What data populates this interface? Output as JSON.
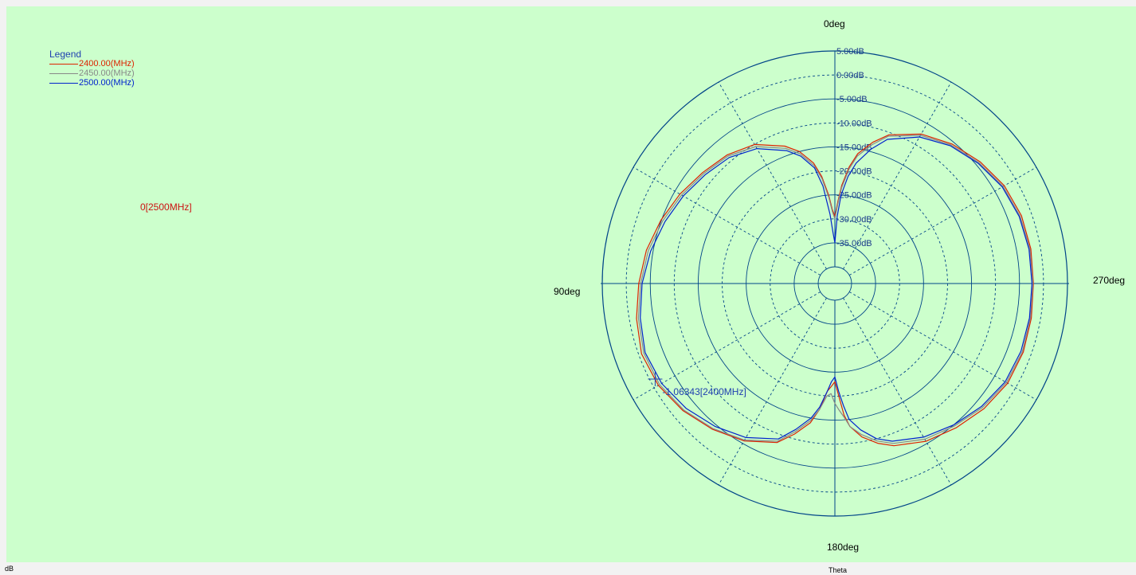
{
  "footer": {
    "left_label": "dB",
    "bottom_axis_label": "Theta"
  },
  "legend": {
    "title": "Legend",
    "entries": [
      {
        "label": "2400.00(MHz)",
        "color": "#dd2200"
      },
      {
        "label": "2450.00(MHz)",
        "color": "#888888"
      },
      {
        "label": "2500.00(MHz)",
        "color": "#0022cc"
      }
    ]
  },
  "markers": {
    "left_marker_text": "0[2500MHz]",
    "cursor_text": "-1.06343[2400MHz]",
    "cursor_angle_deg": 118,
    "cursor_value_db": -1.06343
  },
  "colors": {
    "background": "#ccffcc",
    "grid": "#004488",
    "axis_text": "#1a3a8a"
  },
  "chart_data": {
    "type": "polar",
    "angle_labels": [
      "0deg",
      "90deg",
      "180deg",
      "270deg"
    ],
    "radial_ticks": [
      "5.00dB",
      "0.00dB",
      "-5.00dB",
      "-10.00dB",
      "-15.00dB",
      "-20.00dB",
      "-25.00dB",
      "-30.00dB",
      "-35.00dB"
    ],
    "rlim": [
      -40,
      5
    ],
    "angle_direction": "counterclockwise from top",
    "grid": true,
    "series": [
      {
        "name": "2400.00(MHz)",
        "color": "#dd2200",
        "theta": [
          0,
          2,
          4,
          7,
          10,
          15,
          20,
          30,
          40,
          50,
          60,
          70,
          80,
          90,
          100,
          110,
          120,
          130,
          140,
          150,
          160,
          165,
          170,
          173,
          176,
          178,
          180,
          182,
          184,
          186,
          190,
          195,
          200,
          210,
          220,
          230,
          240,
          250,
          260,
          270,
          280,
          290,
          300,
          310,
          320,
          330,
          340,
          345,
          350,
          353,
          356,
          358,
          360
        ],
        "r": [
          -29.5,
          -28,
          -25,
          -21,
          -18,
          -15,
          -13,
          -10,
          -8.5,
          -7.5,
          -6.2,
          -4.9,
          -3.6,
          -2.6,
          -1.5,
          -0.6,
          -1.0,
          -2.2,
          -3.8,
          -5.6,
          -8.2,
          -11,
          -14,
          -17,
          -21,
          -22,
          -23,
          -20,
          -16,
          -13.5,
          -11,
          -9,
          -7.5,
          -5.5,
          -4.2,
          -2.9,
          -1.9,
          -1.7,
          -1.9,
          -2.1,
          -2.0,
          -2.1,
          -2.7,
          -4.0,
          -5.5,
          -7.5,
          -10.5,
          -13,
          -16,
          -19,
          -23,
          -26.5,
          -29.5
        ]
      },
      {
        "name": "2450.00(MHz)",
        "color": "#888888",
        "theta": [
          0,
          2,
          4,
          7,
          10,
          15,
          20,
          30,
          40,
          50,
          60,
          70,
          80,
          90,
          100,
          110,
          120,
          130,
          140,
          150,
          160,
          165,
          170,
          173,
          176,
          178,
          180,
          182,
          184,
          186,
          190,
          195,
          200,
          210,
          220,
          230,
          240,
          250,
          260,
          270,
          280,
          290,
          300,
          310,
          320,
          330,
          340,
          345,
          350,
          353,
          356,
          358,
          360
        ],
        "r": [
          -30,
          -28.5,
          -25.5,
          -21.5,
          -18.5,
          -15.5,
          -13.5,
          -10.5,
          -8.8,
          -7.8,
          -6.6,
          -5.3,
          -4.0,
          -3.0,
          -1.9,
          -1.1,
          -1.3,
          -2.4,
          -4.0,
          -5.8,
          -8.5,
          -11.5,
          -14.5,
          -17,
          -20,
          -20.5,
          -18.5,
          -17,
          -15.5,
          -13.5,
          -11.5,
          -9.5,
          -8,
          -6,
          -4.7,
          -3.3,
          -2.2,
          -1.9,
          -2.1,
          -2.2,
          -2.2,
          -2.4,
          -3.0,
          -4.3,
          -5.8,
          -7.8,
          -10.8,
          -13.5,
          -16.5,
          -19.5,
          -23.5,
          -27,
          -30
        ]
      },
      {
        "name": "2500.00(MHz)",
        "color": "#0022cc",
        "theta": [
          0,
          2,
          4,
          7,
          10,
          15,
          20,
          30,
          40,
          50,
          60,
          70,
          80,
          90,
          100,
          110,
          120,
          130,
          140,
          150,
          160,
          165,
          170,
          173,
          176,
          178,
          180,
          182,
          184,
          186,
          190,
          195,
          200,
          210,
          220,
          230,
          240,
          250,
          260,
          270,
          280,
          290,
          300,
          310,
          320,
          330,
          340,
          345,
          350,
          353,
          356,
          358,
          360
        ],
        "r": [
          -35,
          -33,
          -29,
          -23,
          -19,
          -16,
          -14,
          -11,
          -9.2,
          -8.2,
          -7.0,
          -5.8,
          -4.5,
          -3.3,
          -2.3,
          -1.4,
          -1.8,
          -3.0,
          -4.6,
          -6.4,
          -9.0,
          -12,
          -15,
          -17.5,
          -21,
          -23,
          -24,
          -21,
          -18,
          -15,
          -12.5,
          -10,
          -8.5,
          -6.5,
          -5.0,
          -3.6,
          -2.5,
          -2.2,
          -2.3,
          -2.4,
          -2.4,
          -2.6,
          -3.2,
          -4.5,
          -6.0,
          -8.2,
          -11.5,
          -14.5,
          -18,
          -21,
          -25,
          -29.5,
          -35
        ]
      }
    ]
  }
}
